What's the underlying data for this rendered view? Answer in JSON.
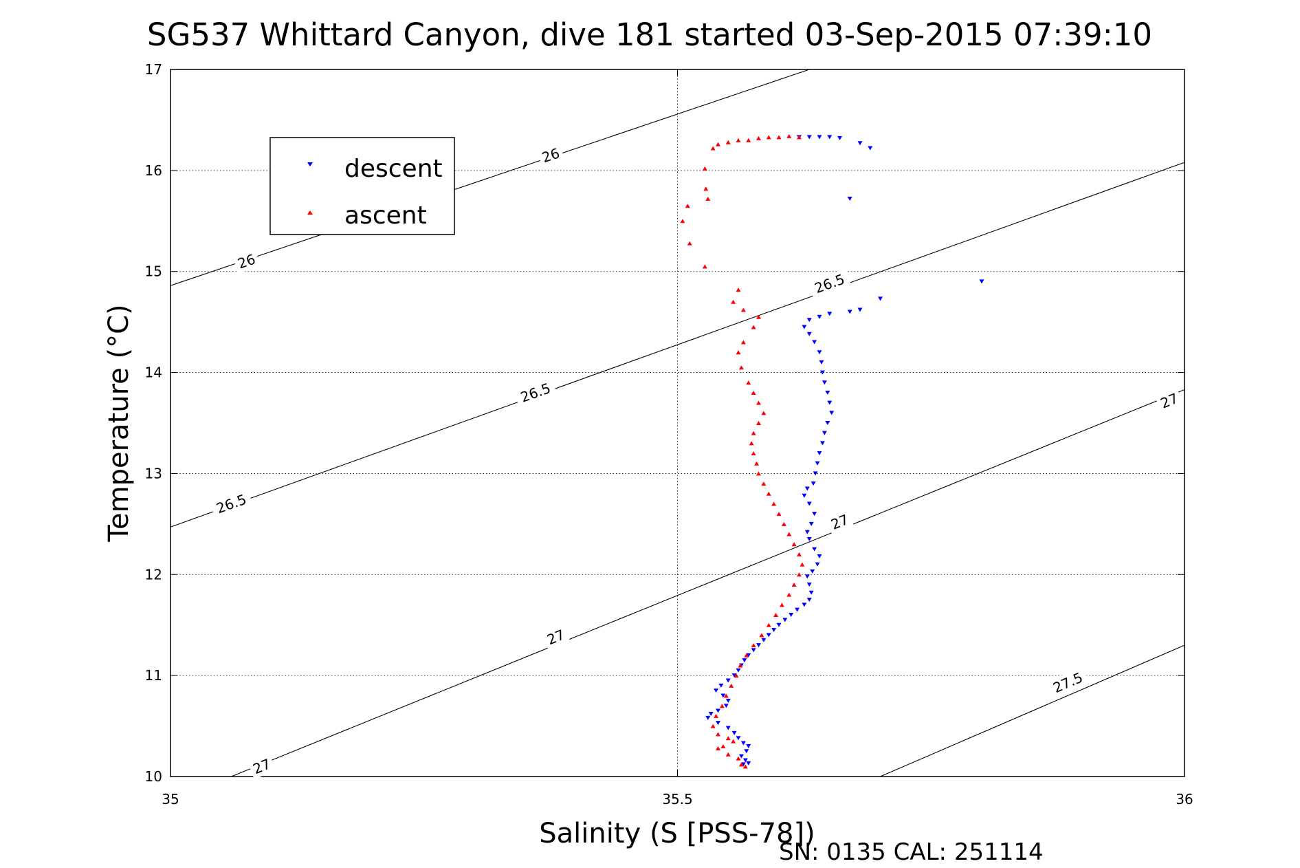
{
  "chart_data": {
    "type": "scatter",
    "title": "SG537 Whittard Canyon, dive 181 started 03-Sep-2015 07:39:10",
    "xlabel": "Salinity (S [PSS-78])",
    "ylabel": "Temperature (°C)",
    "footer": "SN: 0135  CAL: 251114",
    "xlim": [
      35,
      36
    ],
    "ylim": [
      10,
      17
    ],
    "xticks": [
      35,
      35.5,
      36
    ],
    "yticks": [
      10,
      11,
      12,
      13,
      14,
      15,
      16,
      17
    ],
    "xtick_labels": [
      "35",
      "35.5",
      "36"
    ],
    "ytick_labels": [
      "10",
      "11",
      "12",
      "13",
      "14",
      "15",
      "16",
      "17"
    ],
    "grid": true,
    "legend_position": "upper-left",
    "contours": [
      {
        "label": "26",
        "points": [
          [
            35,
            14.86
          ],
          [
            35.63,
            17.0
          ]
        ],
        "labels_at": [
          [
            35.075,
            15.1
          ],
          [
            35.375,
            16.15
          ]
        ]
      },
      {
        "label": "26.5",
        "points": [
          [
            35,
            12.47
          ],
          [
            36,
            16.08
          ]
        ],
        "labels_at": [
          [
            35.06,
            12.7
          ],
          [
            35.36,
            13.8
          ],
          [
            35.65,
            14.88
          ]
        ]
      },
      {
        "label": "27",
        "points": [
          [
            35.06,
            10.0
          ],
          [
            36,
            13.83
          ]
        ],
        "labels_at": [
          [
            35.09,
            10.1
          ],
          [
            35.38,
            11.38
          ],
          [
            35.66,
            12.52
          ],
          [
            35.985,
            13.72
          ]
        ]
      },
      {
        "label": "27.5",
        "points": [
          [
            35.7,
            10.0
          ],
          [
            36,
            11.3
          ]
        ],
        "labels_at": [
          [
            35.885,
            10.93
          ]
        ]
      }
    ],
    "series": [
      {
        "name": "descent",
        "color": "#0000ff",
        "marker": "triangle-down",
        "points": [
          [
            35.62,
            16.33
          ],
          [
            35.63,
            16.33
          ],
          [
            35.64,
            16.33
          ],
          [
            35.65,
            16.33
          ],
          [
            35.66,
            16.32
          ],
          [
            35.68,
            16.27
          ],
          [
            35.69,
            16.22
          ],
          [
            35.67,
            15.72
          ],
          [
            35.8,
            14.9
          ],
          [
            35.7,
            14.73
          ],
          [
            35.68,
            14.62
          ],
          [
            35.67,
            14.6
          ],
          [
            35.65,
            14.58
          ],
          [
            35.64,
            14.55
          ],
          [
            35.63,
            14.52
          ],
          [
            35.625,
            14.45
          ],
          [
            35.63,
            14.38
          ],
          [
            35.635,
            14.3
          ],
          [
            35.64,
            14.2
          ],
          [
            35.642,
            14.1
          ],
          [
            35.643,
            14.0
          ],
          [
            35.645,
            13.9
          ],
          [
            35.648,
            13.8
          ],
          [
            35.65,
            13.7
          ],
          [
            35.652,
            13.6
          ],
          [
            35.648,
            13.5
          ],
          [
            35.645,
            13.4
          ],
          [
            35.643,
            13.3
          ],
          [
            35.64,
            13.2
          ],
          [
            35.638,
            13.1
          ],
          [
            35.636,
            13.0
          ],
          [
            35.634,
            12.9
          ],
          [
            35.628,
            12.85
          ],
          [
            35.625,
            12.78
          ],
          [
            35.63,
            12.7
          ],
          [
            35.635,
            12.6
          ],
          [
            35.632,
            12.5
          ],
          [
            35.628,
            12.42
          ],
          [
            35.63,
            12.35
          ],
          [
            35.635,
            12.25
          ],
          [
            35.64,
            12.18
          ],
          [
            35.638,
            12.1
          ],
          [
            35.633,
            12.03
          ],
          [
            35.628,
            11.98
          ],
          [
            35.63,
            11.9
          ],
          [
            35.632,
            11.82
          ],
          [
            35.63,
            11.75
          ],
          [
            35.625,
            11.7
          ],
          [
            35.618,
            11.65
          ],
          [
            35.612,
            11.6
          ],
          [
            35.606,
            11.55
          ],
          [
            35.6,
            11.5
          ],
          [
            35.595,
            11.45
          ],
          [
            35.59,
            11.4
          ],
          [
            35.585,
            11.35
          ],
          [
            35.58,
            11.3
          ],
          [
            35.575,
            11.25
          ],
          [
            35.57,
            11.2
          ],
          [
            35.566,
            11.15
          ],
          [
            35.563,
            11.1
          ],
          [
            35.56,
            11.05
          ],
          [
            35.556,
            11.0
          ],
          [
            35.55,
            10.95
          ],
          [
            35.543,
            10.9
          ],
          [
            35.538,
            10.85
          ],
          [
            35.545,
            10.8
          ],
          [
            35.55,
            10.75
          ],
          [
            35.548,
            10.7
          ],
          [
            35.54,
            10.65
          ],
          [
            35.533,
            10.62
          ],
          [
            35.53,
            10.58
          ],
          [
            35.54,
            10.53
          ],
          [
            35.55,
            10.48
          ],
          [
            35.556,
            10.43
          ],
          [
            35.56,
            10.38
          ],
          [
            35.565,
            10.33
          ],
          [
            35.57,
            10.3
          ],
          [
            35.568,
            10.25
          ],
          [
            35.563,
            10.2
          ],
          [
            35.567,
            10.16
          ],
          [
            35.57,
            10.13
          ],
          [
            35.565,
            10.12
          ]
        ]
      },
      {
        "name": "ascent",
        "color": "#ff0000",
        "marker": "triangle-up",
        "points": [
          [
            35.62,
            16.33
          ],
          [
            35.61,
            16.34
          ],
          [
            35.6,
            16.33
          ],
          [
            35.59,
            16.33
          ],
          [
            35.58,
            16.32
          ],
          [
            35.57,
            16.3
          ],
          [
            35.56,
            16.3
          ],
          [
            35.55,
            16.28
          ],
          [
            35.54,
            16.26
          ],
          [
            35.535,
            16.22
          ],
          [
            35.527,
            16.02
          ],
          [
            35.528,
            15.82
          ],
          [
            35.53,
            15.72
          ],
          [
            35.51,
            15.65
          ],
          [
            35.505,
            15.5
          ],
          [
            35.512,
            15.28
          ],
          [
            35.527,
            15.05
          ],
          [
            35.56,
            14.82
          ],
          [
            35.555,
            14.7
          ],
          [
            35.565,
            14.62
          ],
          [
            35.58,
            14.55
          ],
          [
            35.575,
            14.45
          ],
          [
            35.565,
            14.3
          ],
          [
            35.56,
            14.2
          ],
          [
            35.563,
            14.05
          ],
          [
            35.57,
            13.9
          ],
          [
            35.575,
            13.8
          ],
          [
            35.58,
            13.7
          ],
          [
            35.585,
            13.6
          ],
          [
            35.58,
            13.5
          ],
          [
            35.575,
            13.4
          ],
          [
            35.573,
            13.3
          ],
          [
            35.575,
            13.2
          ],
          [
            35.578,
            13.1
          ],
          [
            35.58,
            13.0
          ],
          [
            35.585,
            12.9
          ],
          [
            35.59,
            12.8
          ],
          [
            35.595,
            12.7
          ],
          [
            35.6,
            12.6
          ],
          [
            35.605,
            12.5
          ],
          [
            35.61,
            12.4
          ],
          [
            35.615,
            12.3
          ],
          [
            35.62,
            12.2
          ],
          [
            35.623,
            12.1
          ],
          [
            35.62,
            12.0
          ],
          [
            35.615,
            11.9
          ],
          [
            35.61,
            11.8
          ],
          [
            35.603,
            11.7
          ],
          [
            35.597,
            11.6
          ],
          [
            35.59,
            11.5
          ],
          [
            35.583,
            11.4
          ],
          [
            35.575,
            11.3
          ],
          [
            35.568,
            11.2
          ],
          [
            35.562,
            11.1
          ],
          [
            35.558,
            11.0
          ],
          [
            35.553,
            10.9
          ],
          [
            35.548,
            10.8
          ],
          [
            35.544,
            10.7
          ],
          [
            35.538,
            10.6
          ],
          [
            35.535,
            10.5
          ],
          [
            35.54,
            10.42
          ],
          [
            35.55,
            10.38
          ],
          [
            35.555,
            10.35
          ],
          [
            35.545,
            10.3
          ],
          [
            35.54,
            10.28
          ],
          [
            35.55,
            10.22
          ],
          [
            35.56,
            10.18
          ],
          [
            35.563,
            10.12
          ],
          [
            35.567,
            10.1
          ]
        ]
      }
    ]
  }
}
